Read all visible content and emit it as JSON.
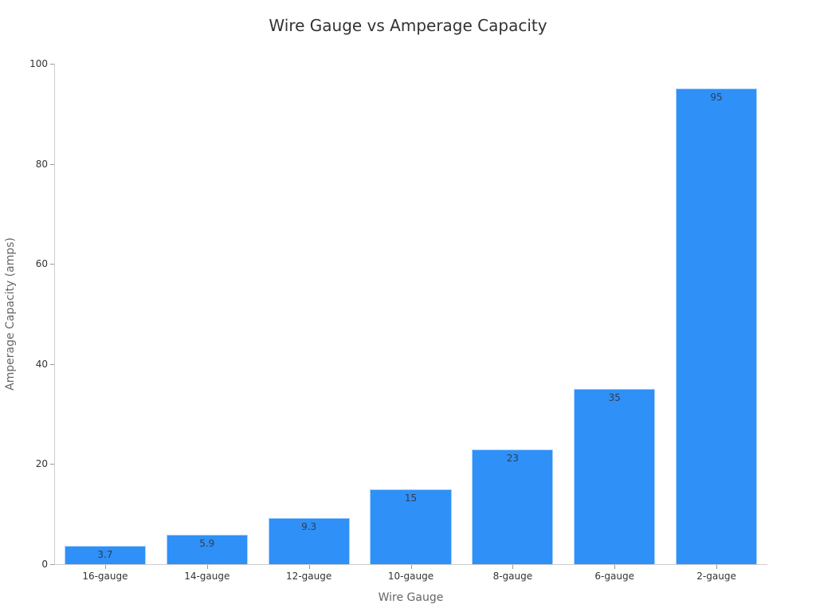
{
  "chart_data": {
    "type": "bar",
    "title": "Wire Gauge vs Amperage Capacity",
    "xlabel": "Wire Gauge",
    "ylabel": "Amperage Capacity (amps)",
    "categories": [
      "16-gauge",
      "14-gauge",
      "12-gauge",
      "10-gauge",
      "8-gauge",
      "6-gauge",
      "2-gauge"
    ],
    "values": [
      3.7,
      5.9,
      9.3,
      15,
      23,
      35,
      95
    ],
    "value_labels": [
      "3.7",
      "5.9",
      "9.3",
      "15",
      "23",
      "35",
      "95"
    ],
    "ylim": [
      0,
      100
    ],
    "yticks": [
      0,
      20,
      40,
      60,
      80,
      100
    ],
    "grid": false,
    "legend": null,
    "bar_color": "#2f90f7",
    "data_labels": "inside-top"
  }
}
